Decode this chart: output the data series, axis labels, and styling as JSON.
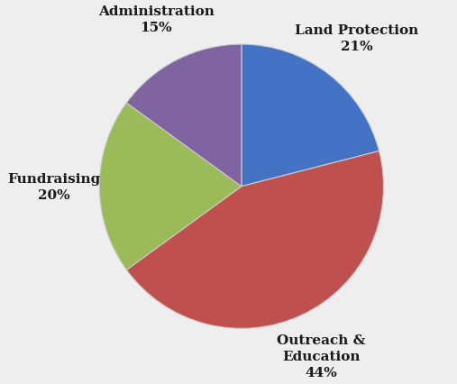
{
  "values": [
    21,
    44,
    20,
    15
  ],
  "colors": [
    "#4472C4",
    "#C0504D",
    "#9BBB59",
    "#8064A2"
  ],
  "startangle": 90,
  "background_color": "#eeeeee",
  "label_texts": [
    "Land Protection\n21%",
    "Outreach &\nEducation\n44%",
    "Fundraising\n20%",
    "Administration\n15%"
  ],
  "label_distance": 1.32,
  "font_size": 11,
  "font_color": "#1a1a1a"
}
